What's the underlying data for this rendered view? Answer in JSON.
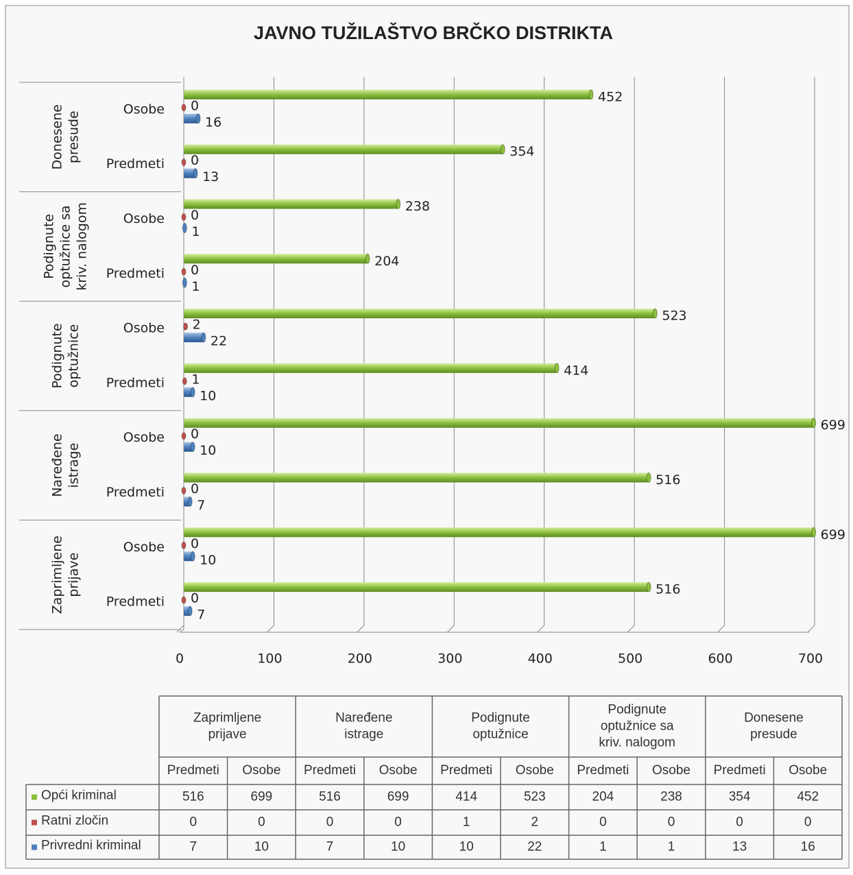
{
  "chart_data": {
    "type": "bar",
    "orientation": "horizontal",
    "title": "JAVNO TUŽILAŠTVO BRČKO DISTRIKTA",
    "groups": [
      [
        "Zaprimljene",
        "prijave"
      ],
      [
        "Naređene",
        "istrage"
      ],
      [
        "Podignute",
        "optužnice"
      ],
      [
        "Podignute",
        "optužnice sa",
        "kriv. nalogom"
      ],
      [
        "Donesene",
        "presude"
      ]
    ],
    "categories": [
      "Predmeti",
      "Osobe",
      "Predmeti",
      "Osobe",
      "Predmeti",
      "Osobe",
      "Predmeti",
      "Osobe",
      "Predmeti",
      "Osobe"
    ],
    "series": [
      {
        "name": "Opći kriminal",
        "color": "#8cbf3f",
        "values": [
          516,
          699,
          516,
          699,
          414,
          523,
          204,
          238,
          354,
          452
        ]
      },
      {
        "name": "Ratni zločin",
        "color": "#c0504d",
        "values": [
          0,
          0,
          0,
          0,
          1,
          2,
          0,
          0,
          0,
          0
        ]
      },
      {
        "name": "Privredni kriminal",
        "color": "#4f81bd",
        "values": [
          7,
          10,
          7,
          10,
          10,
          22,
          1,
          1,
          13,
          16
        ]
      }
    ],
    "xlim": [
      0,
      700
    ],
    "xticks": [
      0,
      100,
      200,
      300,
      400,
      500,
      600,
      700
    ],
    "grid": true
  }
}
